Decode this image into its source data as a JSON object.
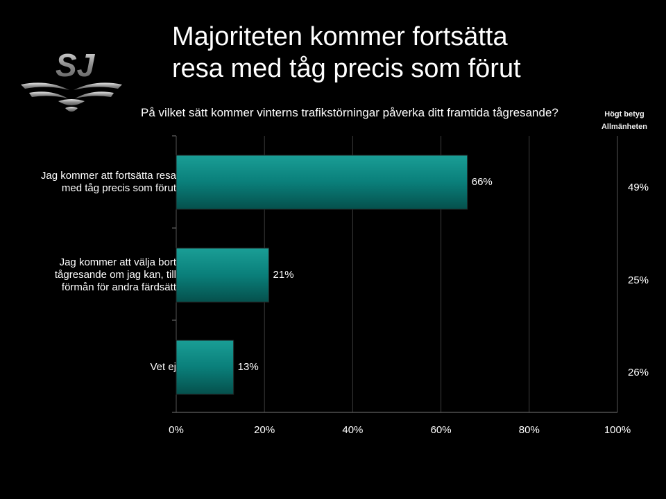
{
  "title_lines": [
    "Majoriteten kommer fortsätta",
    "resa med tåg precis som förut"
  ],
  "logo_text": "SJ",
  "question": "På vilket sätt kommer vinterns trafikstörningar påverka ditt framtida tågresande?",
  "side_header": [
    "Högt betyg",
    "Allmänheten"
  ],
  "colors": {
    "background": "#000000",
    "bar": "#0a7f7a",
    "bar_light": "#1a9e96",
    "grid": "#3a3a3a"
  },
  "chart_data": {
    "type": "bar",
    "orientation": "horizontal",
    "categories": [
      [
        "Jag kommer att fortsätta resa",
        "med tåg precis som förut"
      ],
      [
        "Jag kommer att välja bort",
        "tågresande om jag kan, till",
        "förmån för andra färdsätt"
      ],
      [
        "Vet ej"
      ]
    ],
    "values": [
      66,
      21,
      13
    ],
    "value_labels": [
      "66%",
      "21%",
      "13%"
    ],
    "side_values": [
      "49%",
      "25%",
      "26%"
    ],
    "xlim": [
      0,
      100
    ],
    "xticks": [
      "0%",
      "20%",
      "40%",
      "60%",
      "80%",
      "100%"
    ],
    "grid": true
  }
}
